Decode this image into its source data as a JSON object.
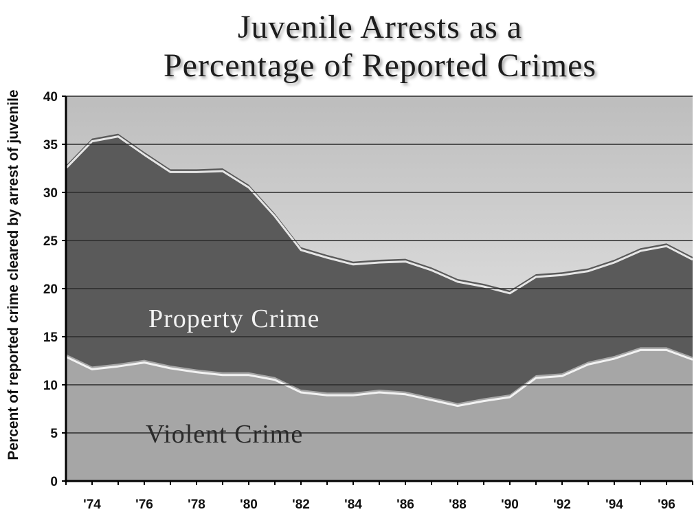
{
  "chart_data": {
    "type": "area",
    "title_line1": "Juvenile Arrests as a",
    "title_line2": "Percentage of Reported Crimes",
    "ylabel": "Percent of reported crime cleared by arrest of juvenile",
    "xlabel": "",
    "ylim": [
      0,
      40
    ],
    "yticks": [
      0,
      5,
      10,
      15,
      20,
      25,
      30,
      35,
      40
    ],
    "xlim": [
      1973,
      1997
    ],
    "xtick_labels": [
      "'74",
      "'76",
      "'78",
      "'80",
      "'82",
      "'84",
      "'86",
      "'88",
      "'90",
      "'92",
      "'94",
      "'96"
    ],
    "xtick_values": [
      1974,
      1976,
      1978,
      1980,
      1982,
      1984,
      1986,
      1988,
      1990,
      1992,
      1994,
      1996
    ],
    "grid": true,
    "x": [
      1973,
      1974,
      1975,
      1976,
      1977,
      1978,
      1979,
      1980,
      1981,
      1982,
      1983,
      1984,
      1985,
      1986,
      1987,
      1988,
      1989,
      1990,
      1991,
      1992,
      1993,
      1994,
      1995,
      1996,
      1997
    ],
    "series": [
      {
        "name": "Property Crime",
        "values": [
          32.8,
          35.6,
          36.1,
          34.2,
          32.4,
          32.4,
          32.5,
          30.8,
          27.8,
          24.3,
          23.5,
          22.8,
          23.0,
          23.1,
          22.2,
          21.0,
          20.5,
          19.8,
          21.5,
          21.7,
          22.1,
          23.0,
          24.2,
          24.7,
          23.3
        ]
      },
      {
        "name": "Violent Crime",
        "values": [
          13.2,
          11.9,
          12.2,
          12.6,
          12.0,
          11.6,
          11.3,
          11.3,
          10.8,
          9.5,
          9.2,
          9.2,
          9.5,
          9.3,
          8.7,
          8.1,
          8.6,
          9.0,
          11.0,
          11.2,
          12.4,
          13.0,
          13.9,
          13.9,
          12.9
        ]
      }
    ],
    "colors": {
      "background_top": "#bdbdbd",
      "background_bottom": "#f4f4f4",
      "property": "#5a5a5a",
      "violent": "#a6a6a6",
      "highlight": "#ffffff",
      "grid": "#2a2a2a",
      "property_label": "#f2f2f2",
      "violent_label": "#2a2a2a"
    }
  }
}
